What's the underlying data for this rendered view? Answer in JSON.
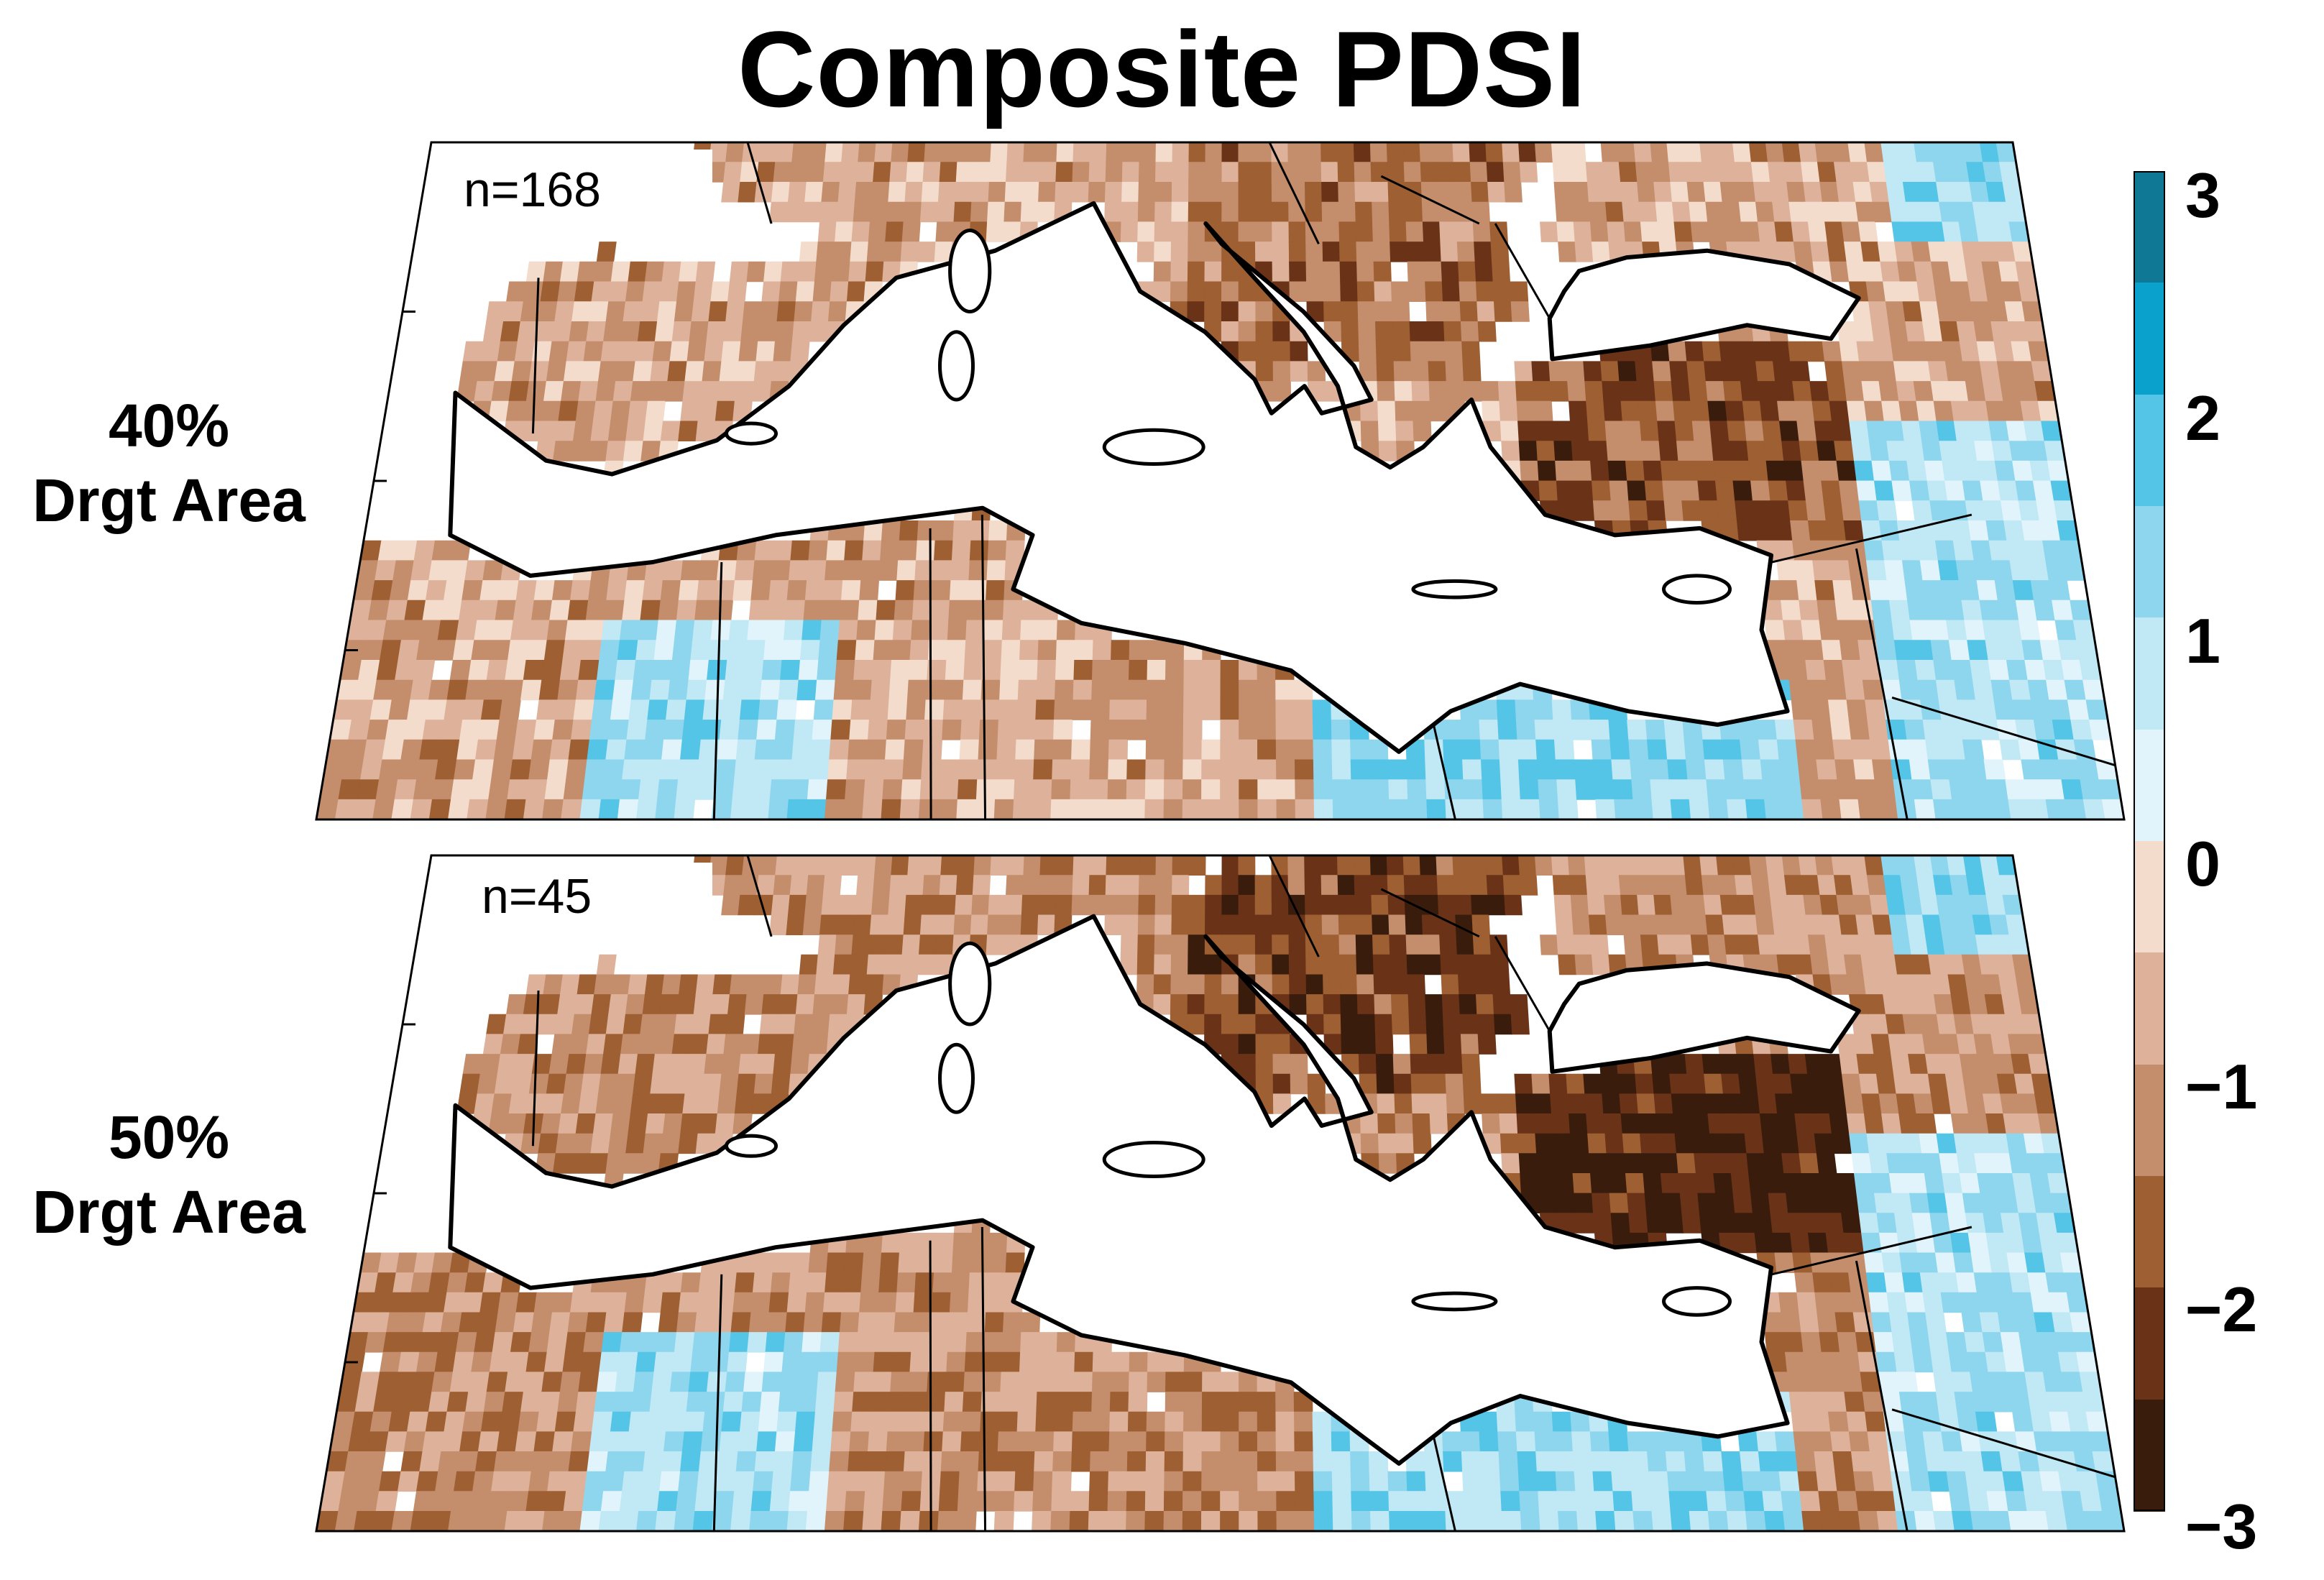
{
  "title": "Composite PDSI",
  "panels": [
    {
      "row_label_line1": "40%",
      "row_label_line2": "Drgt Area",
      "n_label": "n=168"
    },
    {
      "row_label_line1": "50%",
      "row_label_line2": "Drgt Area",
      "n_label": "n=45"
    }
  ],
  "colorbar": {
    "tick_labels": [
      "3",
      "2",
      "1",
      "0",
      "−1",
      "−2",
      "−3"
    ],
    "levels_top_to_bottom": [
      {
        "range": [
          2.5,
          3.0
        ],
        "color": "#0e7895"
      },
      {
        "range": [
          2.0,
          2.5
        ],
        "color": "#0aa2cc"
      },
      {
        "range": [
          1.5,
          2.0
        ],
        "color": "#54c5e6"
      },
      {
        "range": [
          1.0,
          1.5
        ],
        "color": "#8ed6ee"
      },
      {
        "range": [
          0.5,
          1.0
        ],
        "color": "#c0e8f5"
      },
      {
        "range": [
          0.0,
          0.5
        ],
        "color": "#e2f4fb"
      },
      {
        "range": [
          -0.5,
          0.0
        ],
        "color": "#f4dccd"
      },
      {
        "range": [
          -1.0,
          -0.5
        ],
        "color": "#deb29a"
      },
      {
        "range": [
          -1.5,
          -1.0
        ],
        "color": "#c48e6c"
      },
      {
        "range": [
          -2.0,
          -1.5
        ],
        "color": "#9e5f33"
      },
      {
        "range": [
          -2.5,
          -2.0
        ],
        "color": "#6a3318"
      },
      {
        "range": [
          -3.0,
          -2.5
        ],
        "color": "#3a1c0d"
      }
    ]
  },
  "map_colors": {
    "ocean": "#ffffff",
    "coast": "#000000",
    "border": "#000000"
  }
}
